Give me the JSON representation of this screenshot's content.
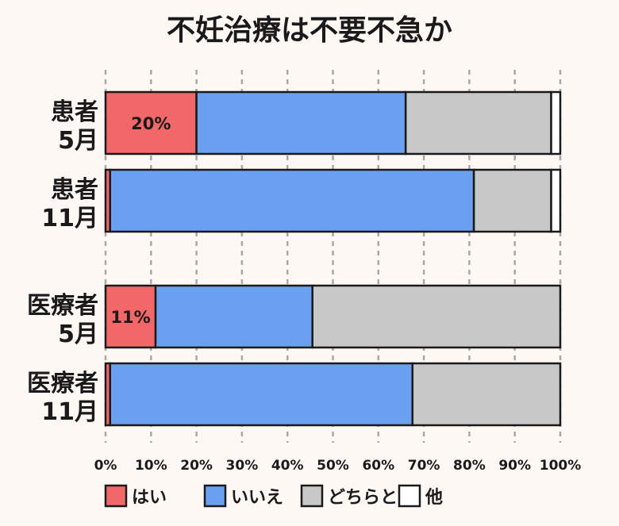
{
  "chart_data": {
    "type": "bar",
    "orientation": "horizontal",
    "stacked": true,
    "title": "不妊治療は不要不急か",
    "xlim": [
      0,
      100
    ],
    "x_ticks": [
      "0%",
      "10%",
      "20%",
      "30%",
      "40%",
      "50%",
      "60%",
      "70%",
      "80%",
      "90%",
      "100%"
    ],
    "grid": true,
    "legend_position": "bottom",
    "categories": [
      {
        "lines": [
          "患者",
          "5月"
        ]
      },
      {
        "lines": [
          "患者",
          "11月"
        ]
      },
      {
        "lines": [
          "医療者",
          "5月"
        ]
      },
      {
        "lines": [
          "医療者",
          "11月"
        ]
      }
    ],
    "series": [
      {
        "name": "はい",
        "color": "#f26767",
        "values": [
          20,
          1,
          11,
          1
        ]
      },
      {
        "name": "いいえ",
        "color": "#6b9ff0",
        "values": [
          46,
          80,
          34.5,
          66.5
        ]
      },
      {
        "name": "どちらとも",
        "color": "#c8c8c8",
        "values": [
          32,
          17,
          54.5,
          32.5
        ]
      },
      {
        "name": "他",
        "color": "#ffffff",
        "values": [
          2,
          2,
          0,
          0
        ]
      }
    ],
    "data_labels": [
      {
        "category_index": 0,
        "series_index": 0,
        "text": "20%"
      },
      {
        "category_index": 2,
        "series_index": 0,
        "text": "11%"
      }
    ]
  }
}
